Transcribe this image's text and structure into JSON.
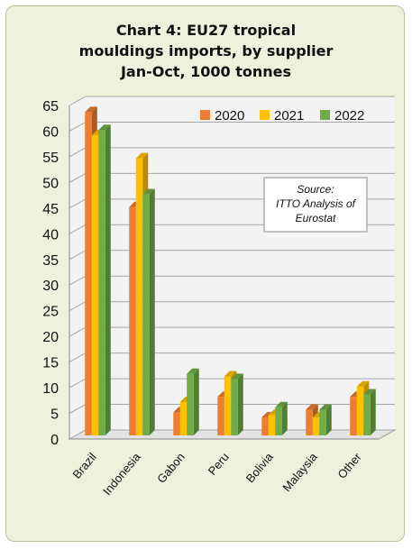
{
  "chart_data": {
    "type": "bar",
    "title_lines": [
      "Chart 4: EU27 tropical",
      "mouldings imports, by supplier",
      "Jan-Oct, 1000 tonnes"
    ],
    "categories": [
      "Brazil",
      "Indonesia",
      "Gabon",
      "Peru",
      "Bolivia",
      "Malaysia",
      "Other"
    ],
    "series": [
      {
        "name": "2020",
        "color": "#ed7d31",
        "values": [
          63,
          44.5,
          4.5,
          7.5,
          3.5,
          5,
          7.5
        ]
      },
      {
        "name": "2021",
        "color": "#ffc000",
        "values": [
          58.5,
          54,
          6.5,
          11.5,
          4,
          3.5,
          9.5
        ]
      },
      {
        "name": "2022",
        "color": "#70ad47",
        "values": [
          59.5,
          47,
          12,
          11,
          5.5,
          5,
          8
        ]
      }
    ],
    "ylim": [
      0,
      65
    ],
    "yticks": [
      0,
      5,
      10,
      15,
      20,
      25,
      30,
      35,
      40,
      45,
      50,
      55,
      60,
      65
    ],
    "legend": "top-right",
    "grid": true,
    "annotation": [
      "Source:",
      "ITTO Analysis of",
      "Eurostat"
    ]
  }
}
